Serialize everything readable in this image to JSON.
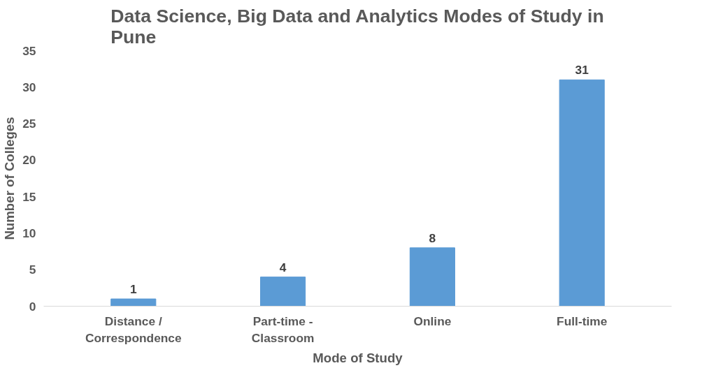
{
  "chart_data": {
    "type": "bar",
    "title": "Data Science, Big Data and Analytics Modes of Study in Pune",
    "xlabel": "Mode of Study",
    "ylabel": "Number of Colleges",
    "categories": [
      "Distance / Correspondence",
      "Part-time - Classroom",
      "Online",
      "Full-time"
    ],
    "values": [
      1,
      4,
      8,
      31
    ],
    "color": "#5b9bd5",
    "ylim": [
      0,
      35
    ],
    "yticks": [
      0,
      5,
      10,
      15,
      20,
      25,
      30,
      35
    ],
    "grid": false,
    "data_labels": true
  }
}
